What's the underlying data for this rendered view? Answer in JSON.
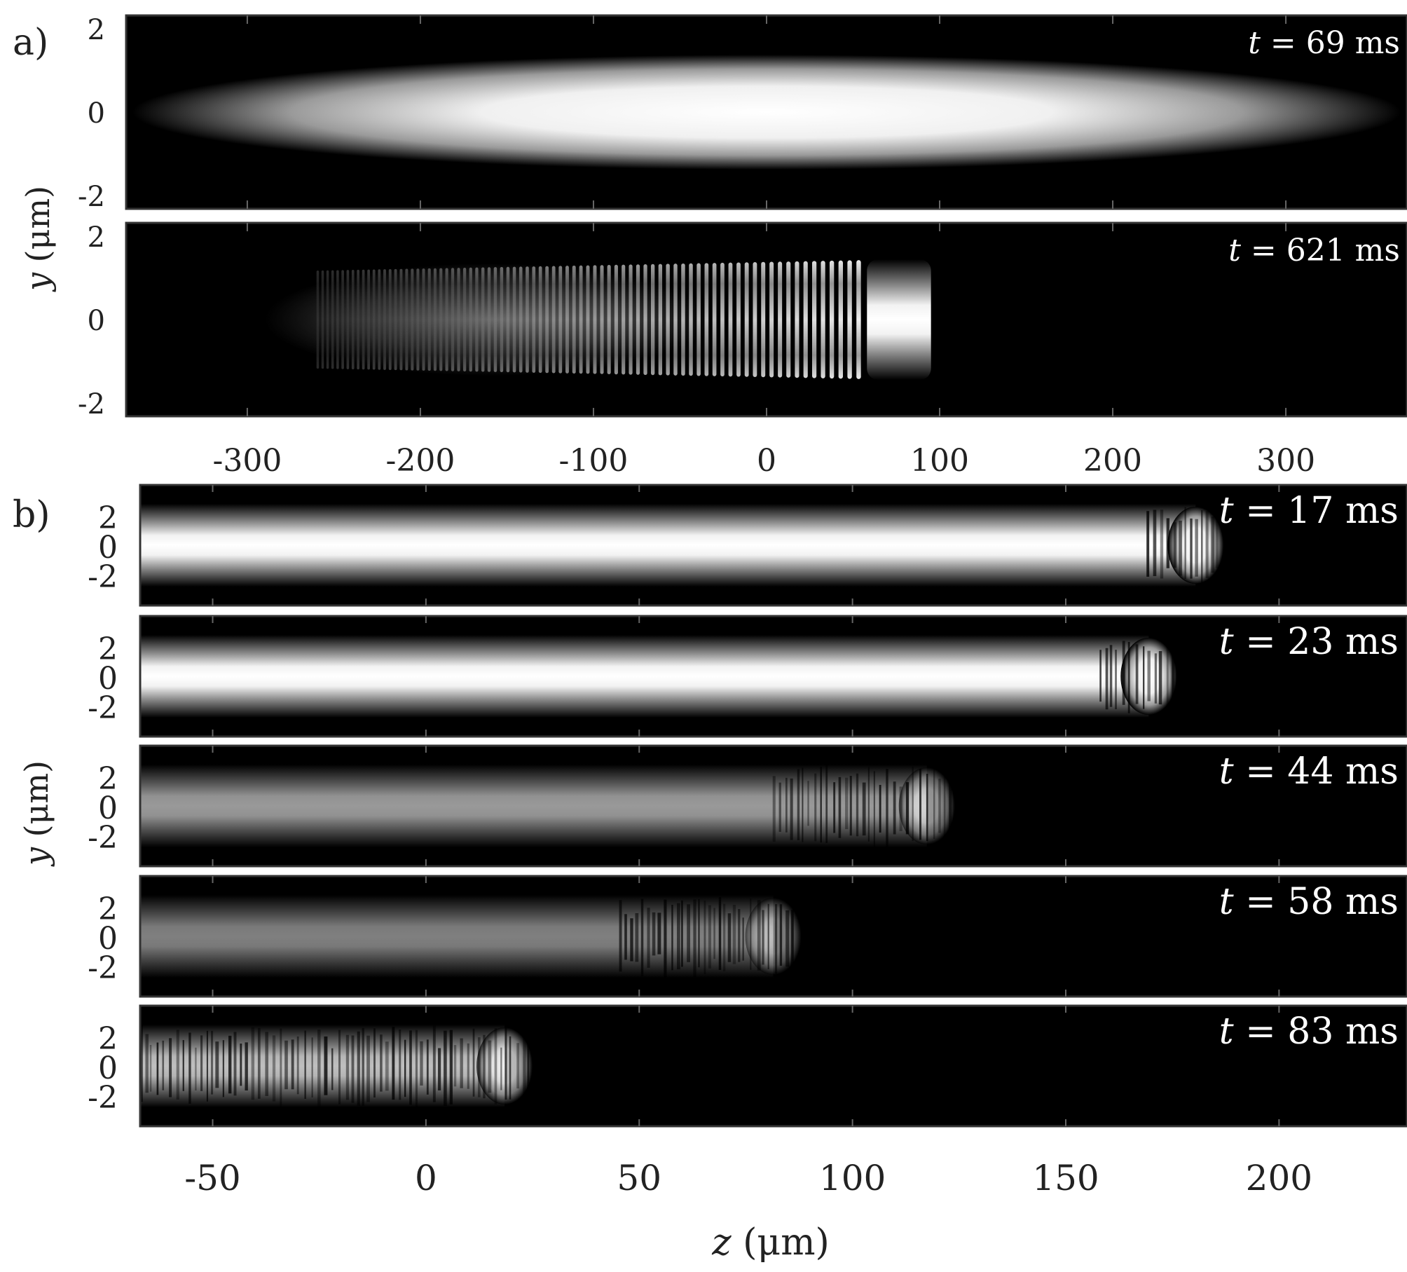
{
  "figure": {
    "panel_a": {
      "label": "a)",
      "ylabel_var": "y",
      "ylabel_unit": " (μm)",
      "y_ticks": [
        "2",
        "0",
        "-2"
      ],
      "x_ticks": [
        "-300",
        "-200",
        "-100",
        "0",
        "100",
        "200",
        "300"
      ],
      "z_range": [
        -370,
        370
      ],
      "snapshots": [
        {
          "t_label": "t",
          "t_value": " = 69 ms",
          "front_z": null,
          "fringes": false
        },
        {
          "t_label": "t",
          "t_value": " = 621 ms",
          "front_z": 95,
          "fringes": true
        }
      ]
    },
    "panel_b": {
      "label": "b)",
      "ylabel_var": "y",
      "ylabel_unit": " (μm)",
      "y_ticks": [
        "2",
        "0",
        "-2"
      ],
      "x_ticks": [
        "-50",
        "0",
        "50",
        "100",
        "150",
        "200"
      ],
      "z_range": [
        -67,
        230
      ],
      "xlabel_var": "z",
      "xlabel_unit": " (μm)",
      "snapshots": [
        {
          "t_label": "t",
          "t_value": " = 17 ms",
          "front_z": 187,
          "brightness": 1.0
        },
        {
          "t_label": "t",
          "t_value": " = 23 ms",
          "front_z": 176,
          "brightness": 1.0
        },
        {
          "t_label": "t",
          "t_value": " = 44 ms",
          "front_z": 124,
          "brightness": 0.6
        },
        {
          "t_label": "t",
          "t_value": " = 58 ms",
          "front_z": 88,
          "brightness": 0.5
        },
        {
          "t_label": "t",
          "t_value": " = 83 ms",
          "front_z": 25,
          "brightness": 0.75
        }
      ]
    }
  }
}
